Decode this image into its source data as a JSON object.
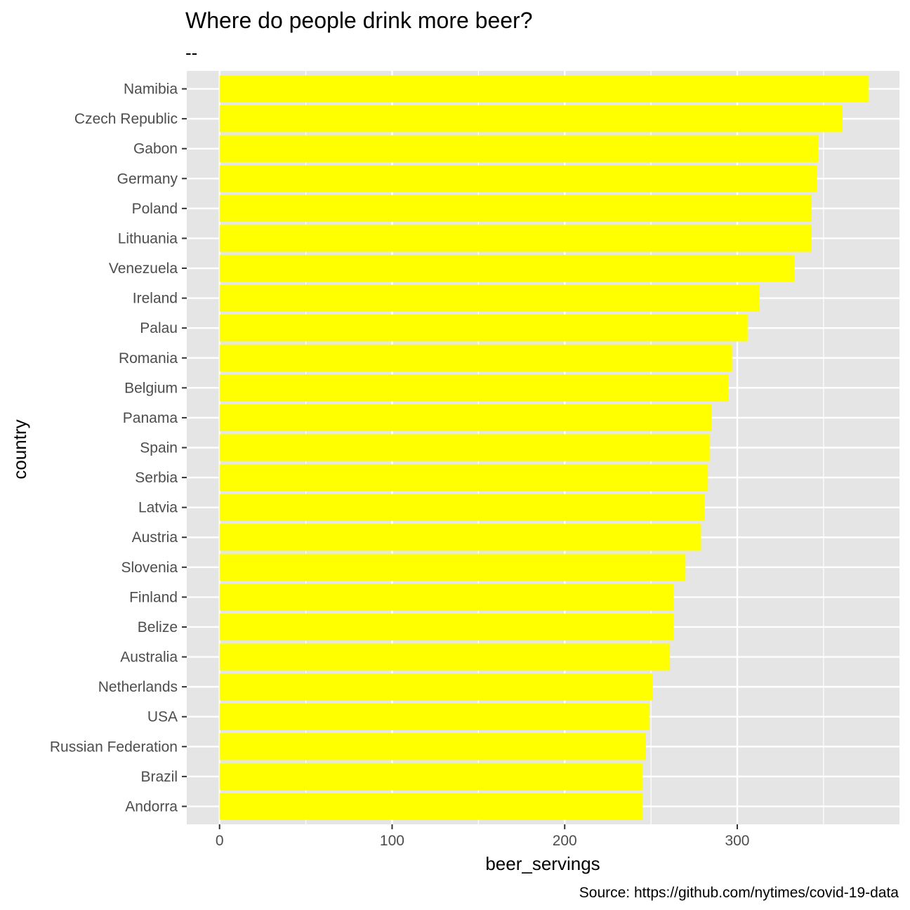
{
  "chart_data": {
    "type": "bar",
    "orientation": "horizontal",
    "title": "Where do people drink more beer?",
    "subtitle": "--",
    "xlabel": "beer_servings",
    "ylabel": "country",
    "caption": "Source: https://github.com/nytimes/covid-19-data",
    "xlim": [
      -19,
      394
    ],
    "x_ticks": [
      0,
      100,
      200,
      300
    ],
    "grid": true,
    "bar_color": "#FFFF00",
    "panel_color": "#E5E5E5",
    "categories": [
      "Namibia",
      "Czech Republic",
      "Gabon",
      "Germany",
      "Poland",
      "Lithuania",
      "Venezuela",
      "Ireland",
      "Palau",
      "Romania",
      "Belgium",
      "Panama",
      "Spain",
      "Serbia",
      "Latvia",
      "Austria",
      "Slovenia",
      "Finland",
      "Belize",
      "Australia",
      "Netherlands",
      "USA",
      "Russian Federation",
      "Brazil",
      "Andorra"
    ],
    "values": [
      376,
      361,
      347,
      346,
      343,
      343,
      333,
      313,
      306,
      297,
      295,
      285,
      284,
      283,
      281,
      279,
      270,
      263,
      263,
      261,
      251,
      249,
      247,
      245,
      245
    ]
  }
}
